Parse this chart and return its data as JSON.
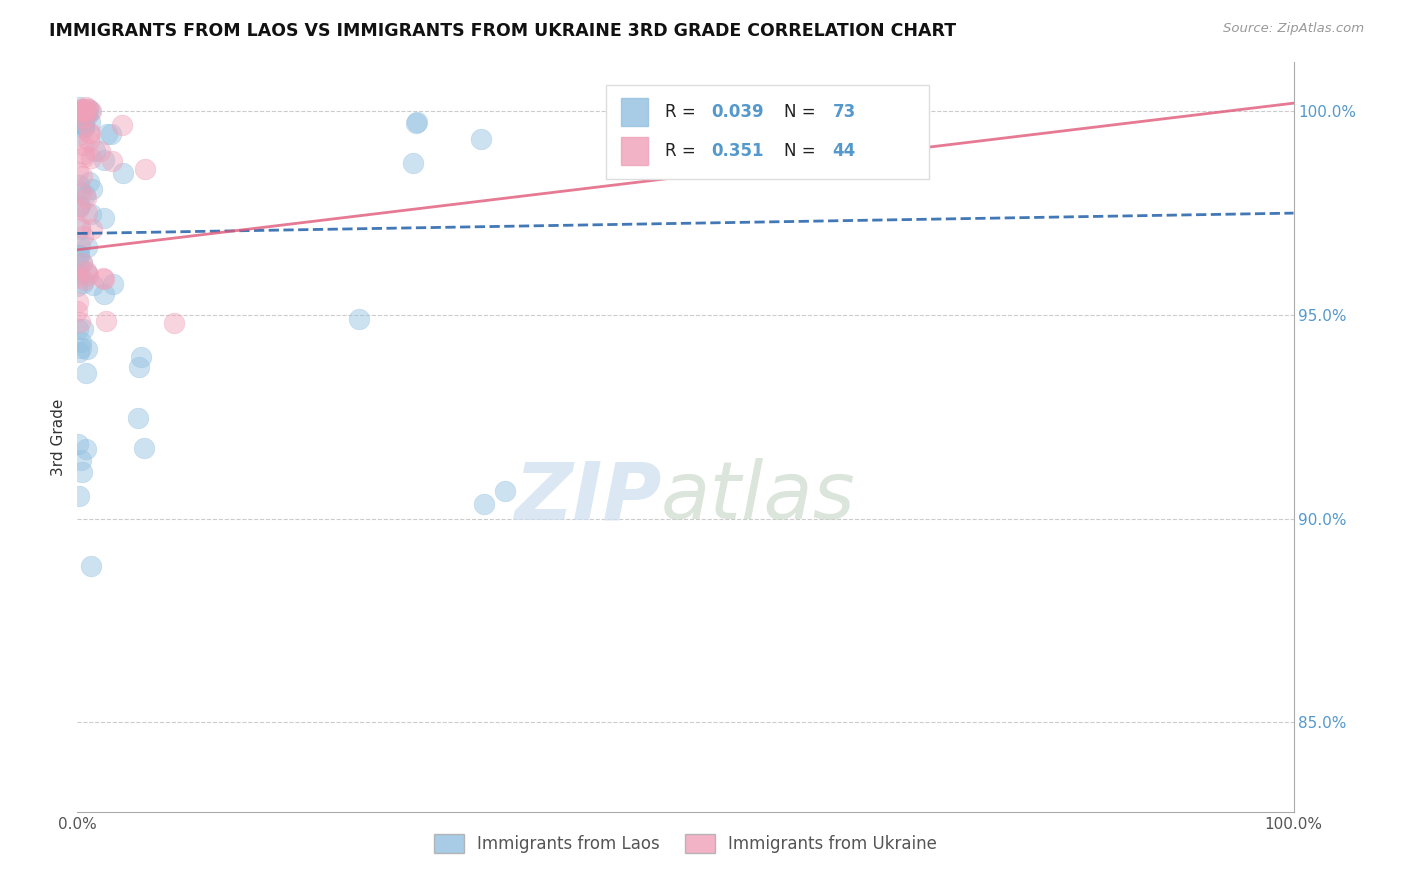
{
  "title": "IMMIGRANTS FROM LAOS VS IMMIGRANTS FROM UKRAINE 3RD GRADE CORRELATION CHART",
  "source": "Source: ZipAtlas.com",
  "ylabel": "3rd Grade",
  "right_ytick_vals": [
    0.85,
    0.9,
    0.95,
    1.0
  ],
  "right_ytick_labels": [
    "85.0%",
    "90.0%",
    "95.0%",
    "100.0%"
  ],
  "xmin": 0.0,
  "xmax": 1.0,
  "ymin": 0.828,
  "ymax": 1.012,
  "blue_color": "#92c0e0",
  "pink_color": "#f0a0b8",
  "blue_line_color": "#2060a8",
  "pink_line_color": "#e05878",
  "legend_R_blue": "0.039",
  "legend_N_blue": "73",
  "legend_R_pink": "0.351",
  "legend_N_pink": "44",
  "watermark_zip": "ZIP",
  "watermark_atlas": "atlas",
  "bg_color": "#ffffff",
  "grid_color": "#cccccc",
  "text_color": "#333333",
  "axis_label_color": "#5599cc",
  "bottom_legend_blue": "Immigrants from Laos",
  "bottom_legend_pink": "Immigrants from Ukraine"
}
